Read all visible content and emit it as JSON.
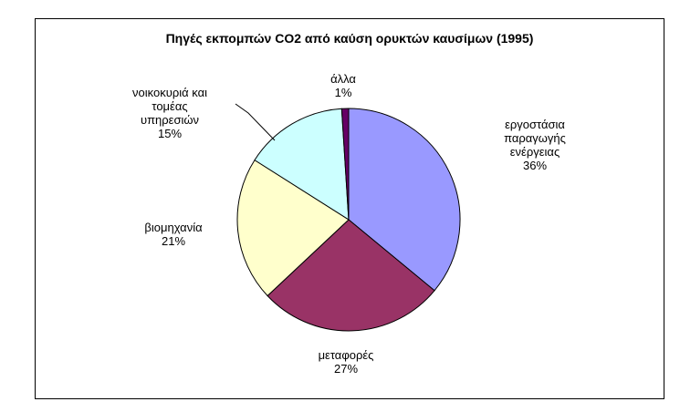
{
  "chart_data": {
    "type": "pie",
    "title": "Πηγές εκπομπών CO2 από καύση ορυκτών καυσίμων (1995)",
    "slices": [
      {
        "label": [
          "εργοστάσια",
          "παραγωγής",
          "ενέργειας"
        ],
        "value": 36,
        "display": "36%",
        "color": "#9999ff"
      },
      {
        "label": [
          "μεταφορές"
        ],
        "value": 27,
        "display": "27%",
        "color": "#993366"
      },
      {
        "label": [
          "βιομηχανία"
        ],
        "value": 21,
        "display": "21%",
        "color": "#ffffcc"
      },
      {
        "label": [
          "νοικοκυριά και",
          "τομέας",
          "υπηρεσιών"
        ],
        "value": 15,
        "display": "15%",
        "color": "#ccffff"
      },
      {
        "label": [
          "άλλα"
        ],
        "value": 1,
        "display": "1%",
        "color": "#660066"
      }
    ],
    "start_angle_deg": 0,
    "direction": "clockwise"
  }
}
